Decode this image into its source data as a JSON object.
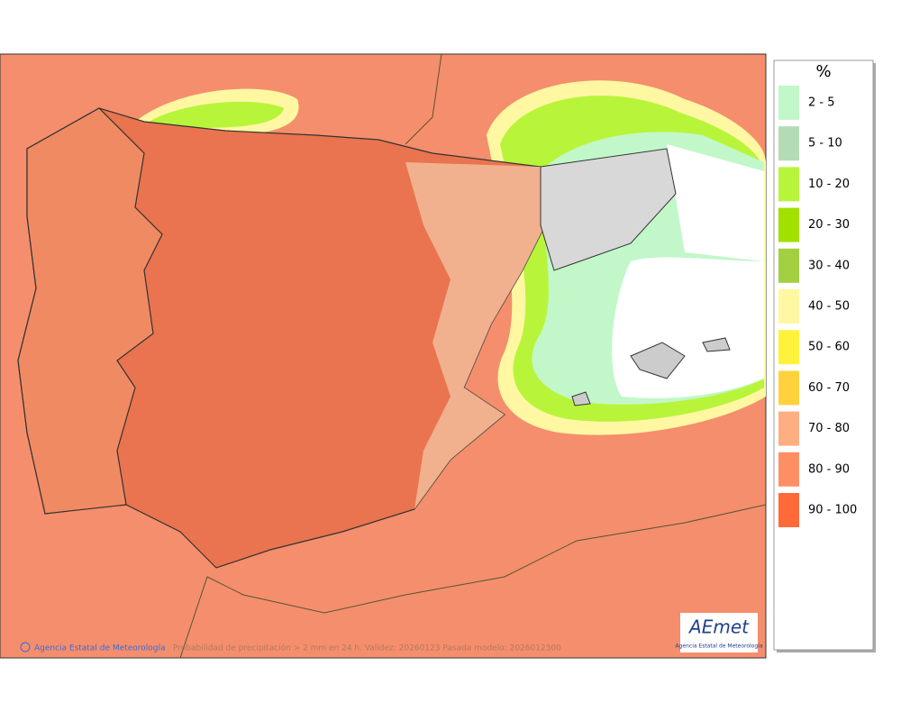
{
  "map": {
    "footer": {
      "credit": "Agencia Estatal de Meteorología",
      "caption": "Probabilidad de precipitación > 2 mm en 24 h. Validez: 20260123 Pasada modelo: 2026012300"
    },
    "logo": {
      "name": "AEmet",
      "subtitle": "Agencia Estatal de Meteorología"
    }
  },
  "legend": {
    "title": "%",
    "items": [
      {
        "label": "2 - 5",
        "color": "#c2f7c9"
      },
      {
        "label": "5 - 10",
        "color": "#b4dcb4"
      },
      {
        "label": "10 - 20",
        "color": "#b8f53a"
      },
      {
        "label": "20 - 30",
        "color": "#a2e000"
      },
      {
        "label": "30 - 40",
        "color": "#a2d040"
      },
      {
        "label": "40 - 50",
        "color": "#fff7a2"
      },
      {
        "label": "50 - 60",
        "color": "#fff23c"
      },
      {
        "label": "60 - 70",
        "color": "#ffd23c"
      },
      {
        "label": "70 - 80",
        "color": "#ffae82"
      },
      {
        "label": "80 - 90",
        "color": "#ff8f62"
      },
      {
        "label": "90 - 100",
        "color": "#ff6a38"
      }
    ]
  }
}
